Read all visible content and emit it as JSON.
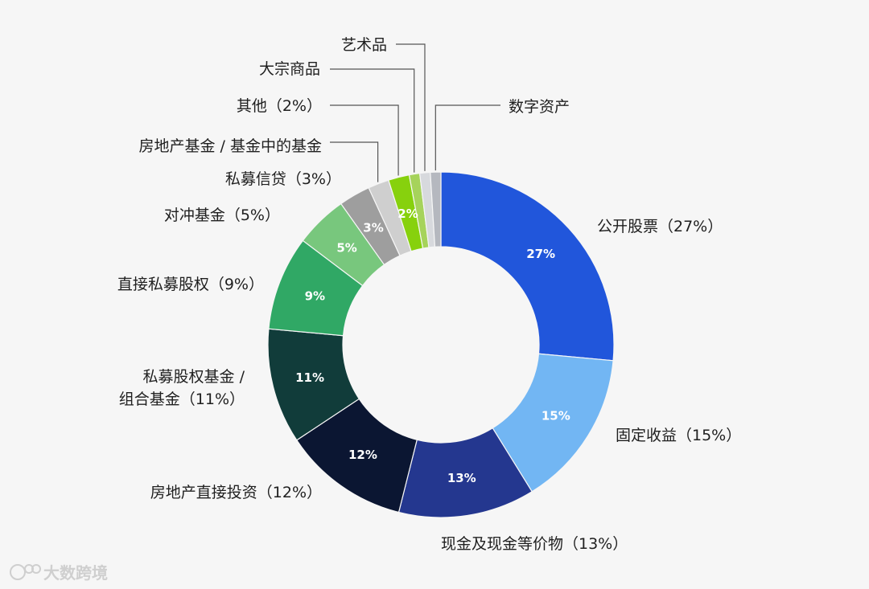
{
  "chart_data": {
    "type": "pie",
    "donut": true,
    "title": "",
    "slices": [
      {
        "label": "公开股票（27%）",
        "value": 27,
        "display": "27%",
        "color": "#2156db"
      },
      {
        "label": "固定收益（15%）",
        "value": 15,
        "display": "15%",
        "color": "#72b6f3"
      },
      {
        "label": "现金及现金等价物（13%）",
        "value": 13,
        "display": "13%",
        "color": "#24378f"
      },
      {
        "label": "房地产直接投资（12%）",
        "value": 12,
        "display": "12%",
        "color": "#0b1632"
      },
      {
        "label": [
          "私募股权基金 /",
          "组合基金（11%）"
        ],
        "value": 11,
        "display": "11%",
        "color": "#113c3a"
      },
      {
        "label": "直接私募股权（9%）",
        "value": 9,
        "display": "9%",
        "color": "#30a865"
      },
      {
        "label": "对冲基金（5%）",
        "value": 5,
        "display": "5%",
        "color": "#78c77d"
      },
      {
        "label": "私募信贷（3%）",
        "value": 3,
        "display": "3%",
        "color": "#9e9e9e"
      },
      {
        "label": "房地产基金 / 基金中的基金",
        "value": 2,
        "display": "",
        "color": "#cfcfcf"
      },
      {
        "label": "其他（2%）",
        "value": 2,
        "display": "2%",
        "color": "#87d10d"
      },
      {
        "label": "大宗商品",
        "value": 1,
        "display": "",
        "color": "#a6d35b"
      },
      {
        "label": "艺术品",
        "value": 1,
        "display": "",
        "color": "#d7d9dd"
      },
      {
        "label": "数字资产",
        "value": 1,
        "display": "",
        "color": "#b5b8bf"
      }
    ]
  },
  "watermark": {
    "text": "大数跨境",
    "icon": "logo-icon"
  }
}
